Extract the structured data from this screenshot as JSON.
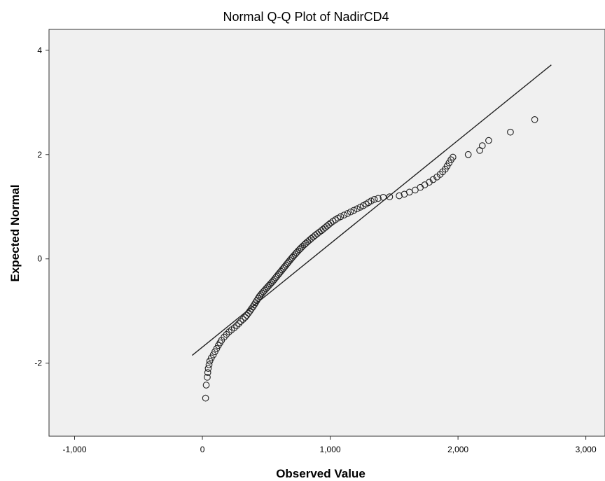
{
  "chart_data": {
    "type": "scatter",
    "title": "Normal Q-Q Plot of NadirCD4",
    "xlabel": "Observed Value",
    "ylabel": "Expected Normal",
    "xlim": [
      -1200,
      3150
    ],
    "ylim": [
      -3.4,
      4.4
    ],
    "x_ticks": [
      {
        "value": -1000,
        "label": "-1,000"
      },
      {
        "value": 0,
        "label": "0"
      },
      {
        "value": 1000,
        "label": "1,000"
      },
      {
        "value": 2000,
        "label": "2,000"
      },
      {
        "value": 3000,
        "label": "3,000"
      }
    ],
    "y_ticks": [
      {
        "value": 4,
        "label": "4"
      },
      {
        "value": 2,
        "label": "2"
      },
      {
        "value": 0,
        "label": "0"
      },
      {
        "value": -2,
        "label": "-2"
      }
    ],
    "grid": false,
    "legend": "none",
    "colors": {
      "plot_background": "#f0f0f0",
      "marker_stroke": "#222222",
      "line": "#222222"
    },
    "reference_line": {
      "x": [
        -80,
        2730
      ],
      "y": [
        -1.85,
        3.72
      ]
    },
    "series": [
      {
        "points": [
          [
            25,
            -2.67
          ],
          [
            30,
            -2.42
          ],
          [
            38,
            -2.27
          ],
          [
            42,
            -2.18
          ],
          [
            46,
            -2.1
          ],
          [
            52,
            -2.03
          ],
          [
            58,
            -1.96
          ],
          [
            70,
            -1.9
          ],
          [
            85,
            -1.84
          ],
          [
            98,
            -1.78
          ],
          [
            112,
            -1.72
          ],
          [
            125,
            -1.66
          ],
          [
            138,
            -1.61
          ],
          [
            150,
            -1.56
          ],
          [
            170,
            -1.5
          ],
          [
            188,
            -1.45
          ],
          [
            208,
            -1.4
          ],
          [
            228,
            -1.36
          ],
          [
            250,
            -1.32
          ],
          [
            268,
            -1.28
          ],
          [
            285,
            -1.24
          ],
          [
            300,
            -1.2
          ],
          [
            318,
            -1.16
          ],
          [
            335,
            -1.12
          ],
          [
            348,
            -1.08
          ],
          [
            360,
            -1.04
          ],
          [
            372,
            -1.0
          ],
          [
            383,
            -0.96
          ],
          [
            395,
            -0.92
          ],
          [
            406,
            -0.88
          ],
          [
            416,
            -0.84
          ],
          [
            426,
            -0.8
          ],
          [
            436,
            -0.76
          ],
          [
            446,
            -0.72
          ],
          [
            456,
            -0.69
          ],
          [
            466,
            -0.66
          ],
          [
            477,
            -0.63
          ],
          [
            488,
            -0.6
          ],
          [
            499,
            -0.57
          ],
          [
            510,
            -0.54
          ],
          [
            521,
            -0.51
          ],
          [
            532,
            -0.48
          ],
          [
            543,
            -0.45
          ],
          [
            554,
            -0.42
          ],
          [
            564,
            -0.39
          ],
          [
            574,
            -0.36
          ],
          [
            584,
            -0.33
          ],
          [
            594,
            -0.3
          ],
          [
            604,
            -0.27
          ],
          [
            614,
            -0.24
          ],
          [
            624,
            -0.21
          ],
          [
            634,
            -0.18
          ],
          [
            644,
            -0.15
          ],
          [
            654,
            -0.12
          ],
          [
            664,
            -0.09
          ],
          [
            674,
            -0.06
          ],
          [
            684,
            -0.03
          ],
          [
            694,
            0.0
          ],
          [
            704,
            0.03
          ],
          [
            715,
            0.06
          ],
          [
            726,
            0.09
          ],
          [
            737,
            0.12
          ],
          [
            748,
            0.15
          ],
          [
            760,
            0.18
          ],
          [
            772,
            0.21
          ],
          [
            784,
            0.24
          ],
          [
            797,
            0.27
          ],
          [
            810,
            0.3
          ],
          [
            824,
            0.33
          ],
          [
            838,
            0.36
          ],
          [
            852,
            0.39
          ],
          [
            867,
            0.42
          ],
          [
            882,
            0.45
          ],
          [
            898,
            0.48
          ],
          [
            914,
            0.51
          ],
          [
            930,
            0.54
          ],
          [
            945,
            0.57
          ],
          [
            960,
            0.6
          ],
          [
            975,
            0.63
          ],
          [
            990,
            0.66
          ],
          [
            1005,
            0.69
          ],
          [
            1022,
            0.72
          ],
          [
            1040,
            0.75
          ],
          [
            1060,
            0.78
          ],
          [
            1082,
            0.81
          ],
          [
            1108,
            0.84
          ],
          [
            1135,
            0.87
          ],
          [
            1160,
            0.9
          ],
          [
            1185,
            0.93
          ],
          [
            1210,
            0.96
          ],
          [
            1235,
            0.99
          ],
          [
            1258,
            1.02
          ],
          [
            1280,
            1.05
          ],
          [
            1300,
            1.08
          ],
          [
            1320,
            1.11
          ],
          [
            1345,
            1.14
          ],
          [
            1375,
            1.16
          ],
          [
            1415,
            1.18
          ],
          [
            1465,
            1.19
          ],
          [
            1540,
            1.21
          ],
          [
            1580,
            1.24
          ],
          [
            1620,
            1.28
          ],
          [
            1665,
            1.32
          ],
          [
            1705,
            1.37
          ],
          [
            1740,
            1.42
          ],
          [
            1775,
            1.47
          ],
          [
            1805,
            1.52
          ],
          [
            1835,
            1.57
          ],
          [
            1860,
            1.62
          ],
          [
            1880,
            1.67
          ],
          [
            1900,
            1.72
          ],
          [
            1915,
            1.78
          ],
          [
            1930,
            1.84
          ],
          [
            1945,
            1.9
          ],
          [
            1960,
            1.95
          ],
          [
            2080,
            2.0
          ],
          [
            2170,
            2.08
          ],
          [
            2190,
            2.17
          ],
          [
            2240,
            2.27
          ],
          [
            2410,
            2.43
          ],
          [
            2600,
            2.67
          ]
        ]
      }
    ]
  }
}
